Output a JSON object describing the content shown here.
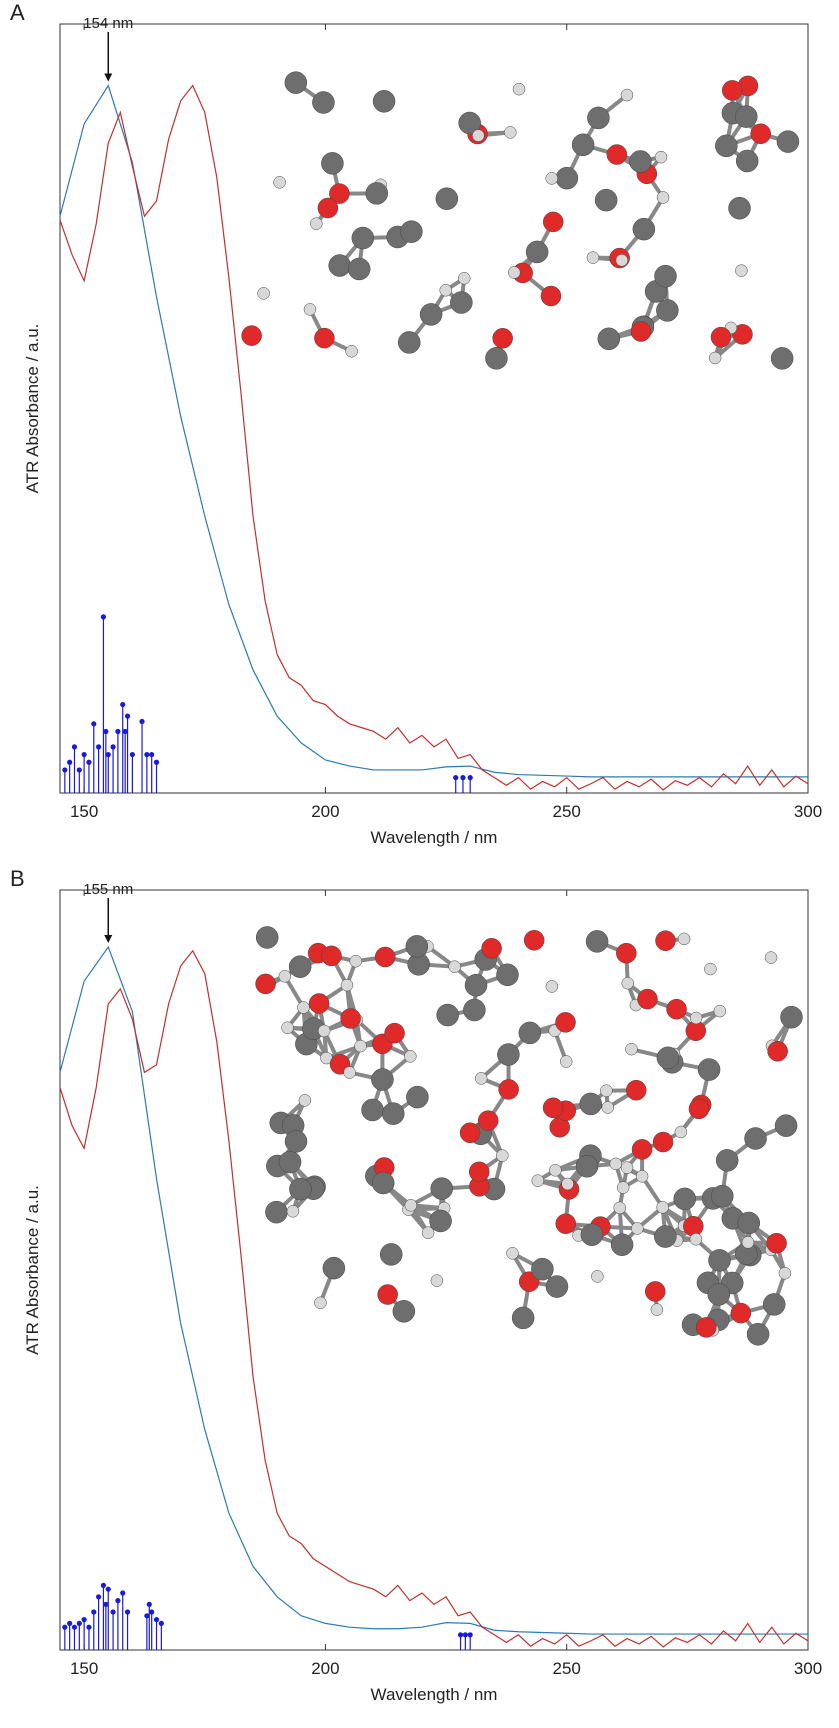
{
  "chart_data": [
    {
      "type": "line",
      "panel": "A",
      "annotation": "154 nm",
      "xlabel": "Wavelength / nm",
      "ylabel": "ATR Absorbance / a.u.",
      "xlim": [
        145,
        300
      ],
      "xticks": [
        150,
        200,
        250,
        300
      ],
      "ylim": [
        0,
        1
      ],
      "series": [
        {
          "style": "line",
          "color": "#2b7bb0",
          "x": [
            145,
            150,
            155,
            160,
            165,
            170,
            175,
            180,
            185,
            190,
            195,
            200,
            205,
            210,
            215,
            220,
            225,
            230,
            235,
            240,
            245,
            250,
            255,
            260,
            265,
            270,
            275,
            280,
            285,
            290,
            295,
            300
          ],
          "values": [
            0.75,
            0.87,
            0.92,
            0.82,
            0.645,
            0.49,
            0.36,
            0.245,
            0.16,
            0.1,
            0.065,
            0.043,
            0.035,
            0.03,
            0.03,
            0.03,
            0.034,
            0.035,
            0.027,
            0.024,
            0.023,
            0.022,
            0.021,
            0.021,
            0.021,
            0.021,
            0.021,
            0.021,
            0.021,
            0.021,
            0.021,
            0.021
          ]
        },
        {
          "style": "line",
          "color": "#c0302c",
          "x": [
            145,
            147.5,
            150,
            152.5,
            155,
            157.5,
            160,
            162.5,
            165,
            167.5,
            170,
            172.5,
            175,
            177.5,
            180,
            182.5,
            185,
            187.5,
            190,
            192.5,
            195,
            197.5,
            200,
            202.5,
            205,
            207.5,
            210,
            212.5,
            215,
            217.5,
            220,
            222.5,
            225,
            227.5,
            230,
            232.5,
            235,
            237.5,
            240,
            242.5,
            245,
            247.5,
            250,
            252.5,
            255,
            257.5,
            260,
            262.5,
            265,
            267.5,
            270,
            272.5,
            275,
            277.5,
            280,
            282.5,
            285,
            287.5,
            290,
            292.5,
            295,
            297.5,
            300
          ],
          "values": [
            0.745,
            0.7,
            0.666,
            0.74,
            0.845,
            0.885,
            0.815,
            0.75,
            0.77,
            0.85,
            0.9,
            0.92,
            0.885,
            0.8,
            0.67,
            0.52,
            0.36,
            0.25,
            0.18,
            0.15,
            0.14,
            0.12,
            0.115,
            0.1,
            0.09,
            0.085,
            0.08,
            0.07,
            0.085,
            0.065,
            0.075,
            0.06,
            0.07,
            0.045,
            0.05,
            0.03,
            0.02,
            0.01,
            0.02,
            0.005,
            0.015,
            0.008,
            0.02,
            0.005,
            0.012,
            0.02,
            0.005,
            0.015,
            0.008,
            0.018,
            0.004,
            0.016,
            0.01,
            0.02,
            0.008,
            0.025,
            0.012,
            0.035,
            0.01,
            0.03,
            0.008,
            0.022,
            0.012
          ]
        },
        {
          "style": "stem",
          "color": "#1a1adb",
          "x": [
            146,
            147,
            148,
            149,
            150,
            151,
            152,
            153,
            154,
            154.5,
            155,
            156,
            157,
            158,
            158.5,
            159,
            160,
            162,
            163,
            164,
            165,
            227,
            228.5,
            230
          ],
          "values": [
            0.03,
            0.04,
            0.06,
            0.03,
            0.05,
            0.04,
            0.09,
            0.06,
            0.229,
            0.08,
            0.05,
            0.06,
            0.08,
            0.115,
            0.08,
            0.1,
            0.05,
            0.093,
            0.05,
            0.05,
            0.04,
            0.02,
            0.02,
            0.02
          ]
        }
      ]
    },
    {
      "type": "line",
      "panel": "B",
      "annotation": "155 nm",
      "xlabel": "Wavelength / nm",
      "ylabel": "ATR Absorbance / a.u.",
      "xlim": [
        145,
        300
      ],
      "xticks": [
        150,
        200,
        250,
        300
      ],
      "ylim": [
        0,
        1
      ],
      "series": [
        {
          "style": "line",
          "color": "#2b7bb0",
          "x": [
            145,
            150,
            155,
            160,
            165,
            170,
            175,
            180,
            185,
            190,
            195,
            200,
            205,
            210,
            215,
            220,
            225,
            230,
            235,
            240,
            245,
            250,
            255,
            260,
            265,
            270,
            275,
            280,
            285,
            290,
            295,
            300
          ],
          "values": [
            0.76,
            0.88,
            0.925,
            0.84,
            0.62,
            0.43,
            0.29,
            0.18,
            0.11,
            0.07,
            0.045,
            0.035,
            0.03,
            0.028,
            0.028,
            0.03,
            0.036,
            0.035,
            0.026,
            0.024,
            0.023,
            0.022,
            0.021,
            0.021,
            0.021,
            0.021,
            0.021,
            0.021,
            0.021,
            0.021,
            0.021,
            0.021
          ]
        },
        {
          "style": "line",
          "color": "#c0302c",
          "x": [
            145,
            147.5,
            150,
            152.5,
            155,
            157.5,
            160,
            162.5,
            165,
            167.5,
            170,
            172.5,
            175,
            177.5,
            180,
            182.5,
            185,
            187.5,
            190,
            192.5,
            195,
            197.5,
            200,
            202.5,
            205,
            207.5,
            210,
            212.5,
            215,
            217.5,
            220,
            222.5,
            225,
            227.5,
            230,
            232.5,
            235,
            237.5,
            240,
            242.5,
            245,
            247.5,
            250,
            252.5,
            255,
            257.5,
            260,
            262.5,
            265,
            267.5,
            270,
            272.5,
            275,
            277.5,
            280,
            282.5,
            285,
            287.5,
            290,
            292.5,
            295,
            297.5,
            300
          ],
          "values": [
            0.74,
            0.69,
            0.66,
            0.74,
            0.85,
            0.87,
            0.83,
            0.76,
            0.77,
            0.85,
            0.9,
            0.92,
            0.89,
            0.8,
            0.67,
            0.52,
            0.36,
            0.25,
            0.18,
            0.15,
            0.14,
            0.12,
            0.11,
            0.1,
            0.09,
            0.085,
            0.08,
            0.07,
            0.085,
            0.065,
            0.075,
            0.06,
            0.07,
            0.045,
            0.05,
            0.03,
            0.02,
            0.01,
            0.02,
            0.005,
            0.015,
            0.008,
            0.02,
            0.005,
            0.012,
            0.02,
            0.005,
            0.015,
            0.008,
            0.018,
            0.004,
            0.016,
            0.01,
            0.02,
            0.008,
            0.025,
            0.012,
            0.035,
            0.01,
            0.03,
            0.008,
            0.022,
            0.012
          ]
        },
        {
          "style": "stem",
          "color": "#1a1adb",
          "x": [
            146,
            147,
            148,
            149,
            150,
            151,
            152,
            153,
            154,
            154.5,
            155,
            156,
            157,
            158,
            159,
            163,
            163.5,
            164,
            165,
            166,
            228,
            229,
            230
          ],
          "values": [
            0.03,
            0.035,
            0.03,
            0.035,
            0.04,
            0.03,
            0.05,
            0.07,
            0.085,
            0.06,
            0.08,
            0.05,
            0.065,
            0.075,
            0.05,
            0.045,
            0.06,
            0.05,
            0.04,
            0.035,
            0.02,
            0.02,
            0.02
          ]
        }
      ]
    }
  ]
}
